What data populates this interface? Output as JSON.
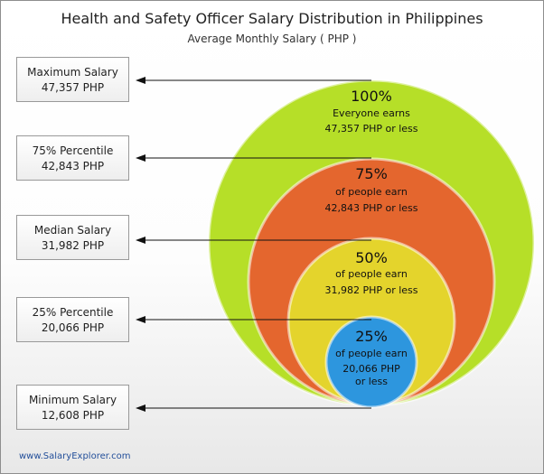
{
  "chart_data": {
    "type": "nested-circles",
    "title": "Health and Safety Officer Salary Distribution in Philippines",
    "subtitle": "Average Monthly Salary ( PHP )",
    "currency": "PHP",
    "levels": [
      {
        "id": "maximum",
        "label": "Maximum Salary",
        "value_text": "47,357 PHP",
        "value": 47357
      },
      {
        "id": "p75",
        "label": "75% Percentile",
        "value_text": "42,843 PHP",
        "value": 42843
      },
      {
        "id": "median",
        "label": "Median Salary",
        "value_text": "31,982 PHP",
        "value": 31982
      },
      {
        "id": "p25",
        "label": "25% Percentile",
        "value_text": "20,066 PHP",
        "value": 20066
      },
      {
        "id": "minimum",
        "label": "Minimum Salary",
        "value_text": "12,608 PHP",
        "value": 12608
      }
    ],
    "circles": [
      {
        "percent": "100%",
        "line1": "Everyone earns",
        "line2": "47,357 PHP or less",
        "color": "#b6df28"
      },
      {
        "percent": "75%",
        "line1": "of people earn",
        "line2": "42,843 PHP or less",
        "color": "#e4662e"
      },
      {
        "percent": "50%",
        "line1": "of people earn",
        "line2": "31,982 PHP or less",
        "color": "#e4d42c"
      },
      {
        "percent": "25%",
        "line1": "of people earn",
        "line2": "20,066 PHP",
        "line3": "or less",
        "color": "#2d96de"
      }
    ]
  },
  "footer": {
    "source": "www.SalaryExplorer.com"
  }
}
